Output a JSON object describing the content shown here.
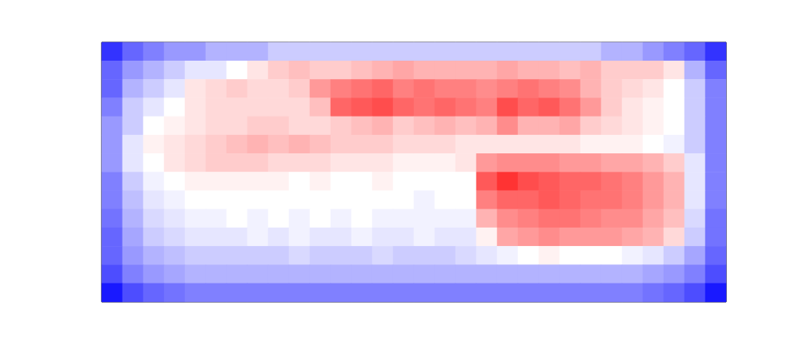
{
  "chart_data": {
    "type": "heatmap",
    "tick_labels": false,
    "color_range": [
      -1,
      1
    ],
    "cells": [
      [
        -0.8,
        -0.6,
        -0.5,
        -0.4,
        -0.4,
        -0.3,
        -0.3,
        -0.3,
        -0.2,
        -0.2,
        -0.2,
        -0.2,
        -0.2,
        -0.2,
        -0.2,
        -0.2,
        -0.2,
        -0.2,
        -0.2,
        -0.2,
        -0.2,
        -0.2,
        -0.2,
        -0.2,
        -0.3,
        -0.3,
        -0.4,
        -0.5,
        -0.6,
        -0.8
      ],
      [
        -0.6,
        -0.4,
        -0.3,
        -0.2,
        -0.1,
        -0.1,
        0.0,
        0.1,
        0.2,
        0.25,
        0.2,
        0.2,
        0.25,
        0.3,
        0.35,
        0.3,
        0.3,
        0.3,
        0.3,
        0.35,
        0.3,
        0.3,
        0.25,
        0.3,
        0.2,
        0.2,
        0.2,
        0.1,
        -0.3,
        -0.6
      ],
      [
        -0.6,
        -0.3,
        -0.2,
        -0.1,
        0.1,
        0.15,
        0.2,
        0.15,
        0.15,
        0.2,
        0.4,
        0.5,
        0.55,
        0.6,
        0.5,
        0.55,
        0.5,
        0.5,
        0.45,
        0.5,
        0.55,
        0.5,
        0.45,
        0.3,
        0.2,
        0.15,
        0.1,
        0.0,
        -0.2,
        -0.5
      ],
      [
        -0.5,
        -0.2,
        -0.1,
        0.0,
        0.1,
        0.15,
        0.15,
        0.15,
        0.15,
        0.15,
        0.25,
        0.6,
        0.65,
        0.7,
        0.6,
        0.55,
        0.6,
        0.55,
        0.5,
        0.7,
        0.6,
        0.65,
        0.55,
        0.4,
        0.2,
        0.1,
        0.05,
        0.0,
        -0.2,
        -0.5
      ],
      [
        -0.4,
        -0.2,
        0.0,
        0.05,
        0.1,
        0.15,
        0.15,
        0.2,
        0.2,
        0.15,
        0.15,
        0.2,
        0.25,
        0.3,
        0.2,
        0.25,
        0.3,
        0.25,
        0.3,
        0.45,
        0.3,
        0.3,
        0.35,
        0.2,
        0.15,
        0.1,
        0.05,
        0.0,
        -0.2,
        -0.5
      ],
      [
        -0.4,
        -0.1,
        0.05,
        0.1,
        0.15,
        0.2,
        0.25,
        0.3,
        0.25,
        0.3,
        0.25,
        0.2,
        0.2,
        0.2,
        0.15,
        0.15,
        0.15,
        0.1,
        0.1,
        0.1,
        0.1,
        0.1,
        0.1,
        0.05,
        0.05,
        0.05,
        0.0,
        -0.05,
        -0.2,
        -0.5
      ],
      [
        -0.4,
        -0.1,
        0.0,
        0.1,
        0.15,
        0.2,
        0.2,
        0.2,
        0.15,
        0.15,
        0.15,
        0.1,
        0.1,
        0.1,
        0.05,
        0.05,
        0.05,
        0.1,
        0.4,
        0.45,
        0.45,
        0.45,
        0.4,
        0.4,
        0.35,
        0.35,
        0.3,
        0.2,
        -0.1,
        -0.5
      ],
      [
        -0.5,
        -0.2,
        -0.05,
        0.0,
        0.05,
        0.05,
        0.05,
        0.05,
        0.05,
        0.0,
        0.05,
        0.0,
        0.0,
        0.05,
        0.0,
        0.0,
        0.0,
        0.0,
        0.65,
        0.8,
        0.7,
        0.65,
        0.6,
        0.6,
        0.55,
        0.5,
        0.4,
        0.3,
        -0.1,
        -0.5
      ],
      [
        -0.5,
        -0.25,
        -0.1,
        -0.05,
        0.0,
        0.0,
        0.0,
        0.0,
        0.0,
        0.0,
        0.0,
        0.0,
        0.0,
        0.0,
        0.0,
        -0.05,
        0.0,
        0.0,
        0.5,
        0.6,
        0.6,
        0.65,
        0.6,
        0.55,
        0.55,
        0.5,
        0.4,
        0.3,
        -0.1,
        -0.5
      ],
      [
        -0.55,
        -0.3,
        -0.15,
        -0.1,
        -0.05,
        -0.05,
        0.0,
        -0.05,
        0.0,
        -0.05,
        0.0,
        -0.05,
        0.0,
        -0.05,
        -0.05,
        -0.05,
        -0.05,
        -0.05,
        0.3,
        0.45,
        0.5,
        0.55,
        0.55,
        0.5,
        0.45,
        0.45,
        0.35,
        0.25,
        -0.15,
        -0.55
      ],
      [
        -0.6,
        -0.35,
        -0.2,
        -0.15,
        -0.1,
        -0.1,
        -0.1,
        -0.05,
        -0.1,
        -0.05,
        -0.1,
        -0.1,
        -0.05,
        -0.1,
        -0.1,
        -0.05,
        -0.1,
        -0.1,
        0.05,
        0.35,
        0.4,
        0.45,
        0.4,
        0.4,
        0.4,
        0.35,
        0.3,
        0.15,
        -0.2,
        -0.55
      ],
      [
        -0.6,
        -0.4,
        -0.3,
        -0.25,
        -0.2,
        -0.2,
        -0.2,
        -0.2,
        -0.2,
        -0.15,
        -0.2,
        -0.2,
        -0.2,
        -0.15,
        -0.2,
        -0.2,
        -0.2,
        -0.15,
        -0.1,
        -0.05,
        0.0,
        0.05,
        0.0,
        0.0,
        0.0,
        -0.05,
        -0.1,
        -0.2,
        -0.35,
        -0.6
      ],
      [
        -0.7,
        -0.5,
        -0.4,
        -0.35,
        -0.3,
        -0.3,
        -0.3,
        -0.3,
        -0.3,
        -0.3,
        -0.3,
        -0.3,
        -0.3,
        -0.3,
        -0.3,
        -0.3,
        -0.3,
        -0.3,
        -0.3,
        -0.3,
        -0.3,
        -0.3,
        -0.3,
        -0.3,
        -0.3,
        -0.3,
        -0.35,
        -0.4,
        -0.5,
        -0.7
      ],
      [
        -0.9,
        -0.7,
        -0.6,
        -0.55,
        -0.5,
        -0.5,
        -0.5,
        -0.5,
        -0.5,
        -0.5,
        -0.5,
        -0.5,
        -0.5,
        -0.5,
        -0.5,
        -0.5,
        -0.5,
        -0.5,
        -0.5,
        -0.5,
        -0.5,
        -0.5,
        -0.5,
        -0.5,
        -0.5,
        -0.5,
        -0.55,
        -0.6,
        -0.7,
        -0.9
      ]
    ]
  }
}
